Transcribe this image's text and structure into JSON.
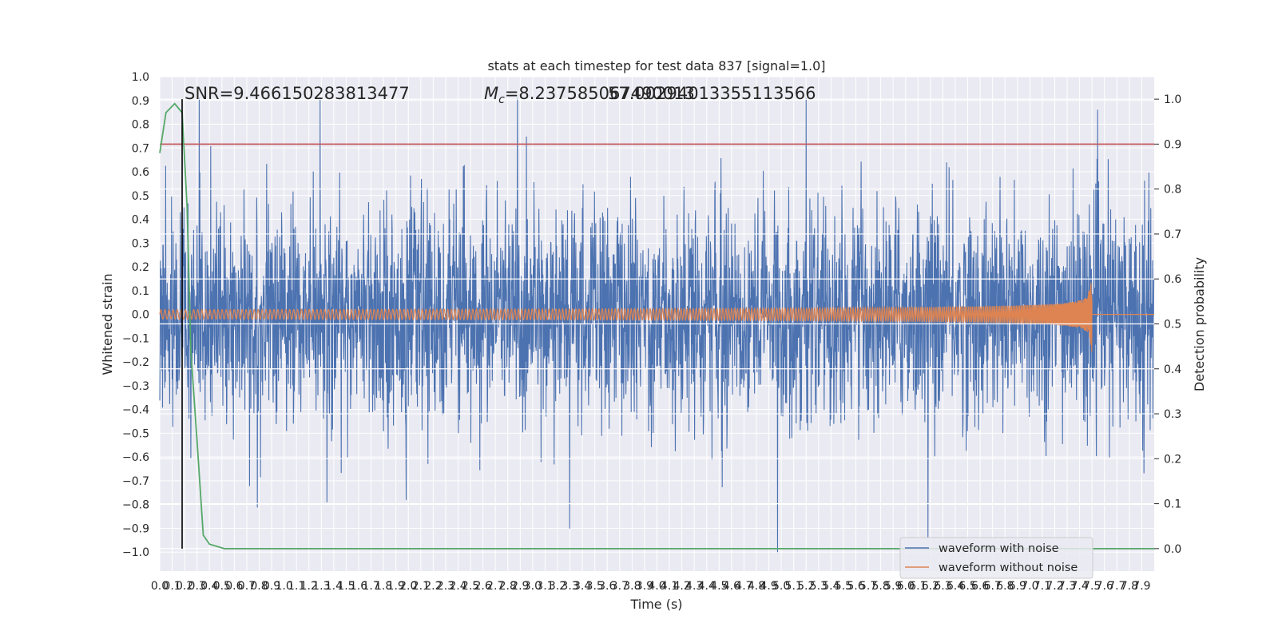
{
  "chart_data": {
    "type": "line",
    "title": "stats at each timestep for test data 837 [signal=1.0]",
    "xlabel": "Time (s)",
    "ylabel_left": "Whitened strain",
    "ylabel_right": "Detection probability",
    "xlim": [
      0,
      8.0
    ],
    "ylim_left": [
      -1.08,
      1.0
    ],
    "ylim_right": [
      -0.05,
      1.05
    ],
    "grid": true,
    "legend_position": "lower right",
    "x_ticks": [
      "0.0",
      "0.1",
      "0.2",
      "0.3",
      "0.4",
      "0.5",
      "0.6",
      "0.7",
      "0.8",
      "0.9",
      "1.0",
      "1.1",
      "1.2",
      "1.3",
      "1.4",
      "1.5",
      "1.6",
      "1.7",
      "1.8",
      "1.9",
      "2.0",
      "2.1",
      "2.2",
      "2.3",
      "2.4",
      "2.5",
      "2.6",
      "2.7",
      "2.8",
      "2.9",
      "3.0",
      "3.1",
      "3.2",
      "3.3",
      "3.4",
      "3.5",
      "3.6",
      "3.7",
      "3.8",
      "3.9",
      "4.0",
      "4.1",
      "4.2",
      "4.3",
      "4.4",
      "4.5",
      "4.6",
      "4.7",
      "4.8",
      "4.9",
      "5.0",
      "5.1",
      "5.2",
      "5.3",
      "5.4",
      "5.5",
      "5.6",
      "5.7",
      "5.8",
      "5.9",
      "6.0",
      "6.1",
      "6.2",
      "6.3",
      "6.4",
      "6.5",
      "6.6",
      "6.7",
      "6.8",
      "6.9",
      "7.0",
      "7.1",
      "7.2",
      "7.3",
      "7.4",
      "7.5",
      "7.6",
      "7.7",
      "7.8",
      "7.9"
    ],
    "y_left_ticks": [
      "1.0",
      "0.9",
      "0.8",
      "0.7",
      "0.6",
      "0.5",
      "0.4",
      "0.3",
      "0.2",
      "0.1",
      "0.0",
      "−0.1",
      "−0.2",
      "−0.3",
      "−0.4",
      "−0.5",
      "−0.6",
      "−0.7",
      "−0.8",
      "−0.9",
      "−1.0"
    ],
    "y_right_ticks": [
      "1.0",
      "0.9",
      "0.8",
      "0.7",
      "0.6",
      "0.5",
      "0.4",
      "0.3",
      "0.2",
      "0.1",
      "0.0"
    ],
    "series": [
      {
        "name": "waveform with noise",
        "color": "#4c72b0",
        "envelope_typical": 0.3,
        "peak_max": 0.91,
        "peak_min": -1.0
      },
      {
        "name": "waveform without noise",
        "color": "#dd8452",
        "merger_time": 7.5,
        "amplitude_start": 0.02,
        "amplitude_peak_pos": 0.23,
        "amplitude_peak_neg": -0.31
      },
      {
        "color": "#55a868",
        "axis": "right",
        "x": [
          0.0,
          0.05,
          0.12,
          0.18,
          0.22,
          0.25,
          0.3,
          0.35,
          0.4,
          0.52,
          0.6,
          1.0,
          8.0
        ],
        "y": [
          0.88,
          0.97,
          0.99,
          0.97,
          0.76,
          0.44,
          0.24,
          0.03,
          0.01,
          0.0,
          0.0,
          0.0,
          0.0
        ]
      }
    ],
    "threshold_line": {
      "axis": "right",
      "value": 0.9,
      "color": "#c44e52"
    },
    "vertical_marker": {
      "x": 0.18,
      "color": "#000000"
    },
    "annotations": {
      "snr": "SNR=9.466150283813477",
      "mc_symbol": "M",
      "mc_subscript": "c",
      "mc_value": "=8.237585067490013",
      "mc_overlap": "57.00294013355113566"
    }
  }
}
